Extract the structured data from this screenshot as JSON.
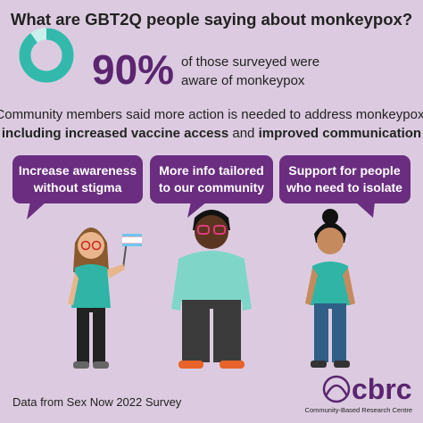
{
  "title": "What are GBT2Q people saying about monkeypox?",
  "stat": {
    "value": 90,
    "label": "90%",
    "text": [
      "of those surveyed were",
      "aware of monkeypox"
    ]
  },
  "summary": [
    [
      {
        "text": "Community members said more action is needed to address monkeypox,",
        "bold": false
      }
    ],
    [
      {
        "text": "including increased vaccine access",
        "bold": true
      },
      {
        "text": " and ",
        "bold": false
      },
      {
        "text": "improved communication",
        "bold": true
      }
    ]
  ],
  "bubbles": [
    [
      "Increase awareness",
      "without stigma"
    ],
    [
      "More info tailored",
      "to our community"
    ],
    [
      "Support for people",
      "who need to isolate"
    ]
  ],
  "footer": "Data from Sex Now 2022 Survey",
  "logo": {
    "name": "cbrc",
    "subtitle": "Community-Based Research Centre"
  }
}
